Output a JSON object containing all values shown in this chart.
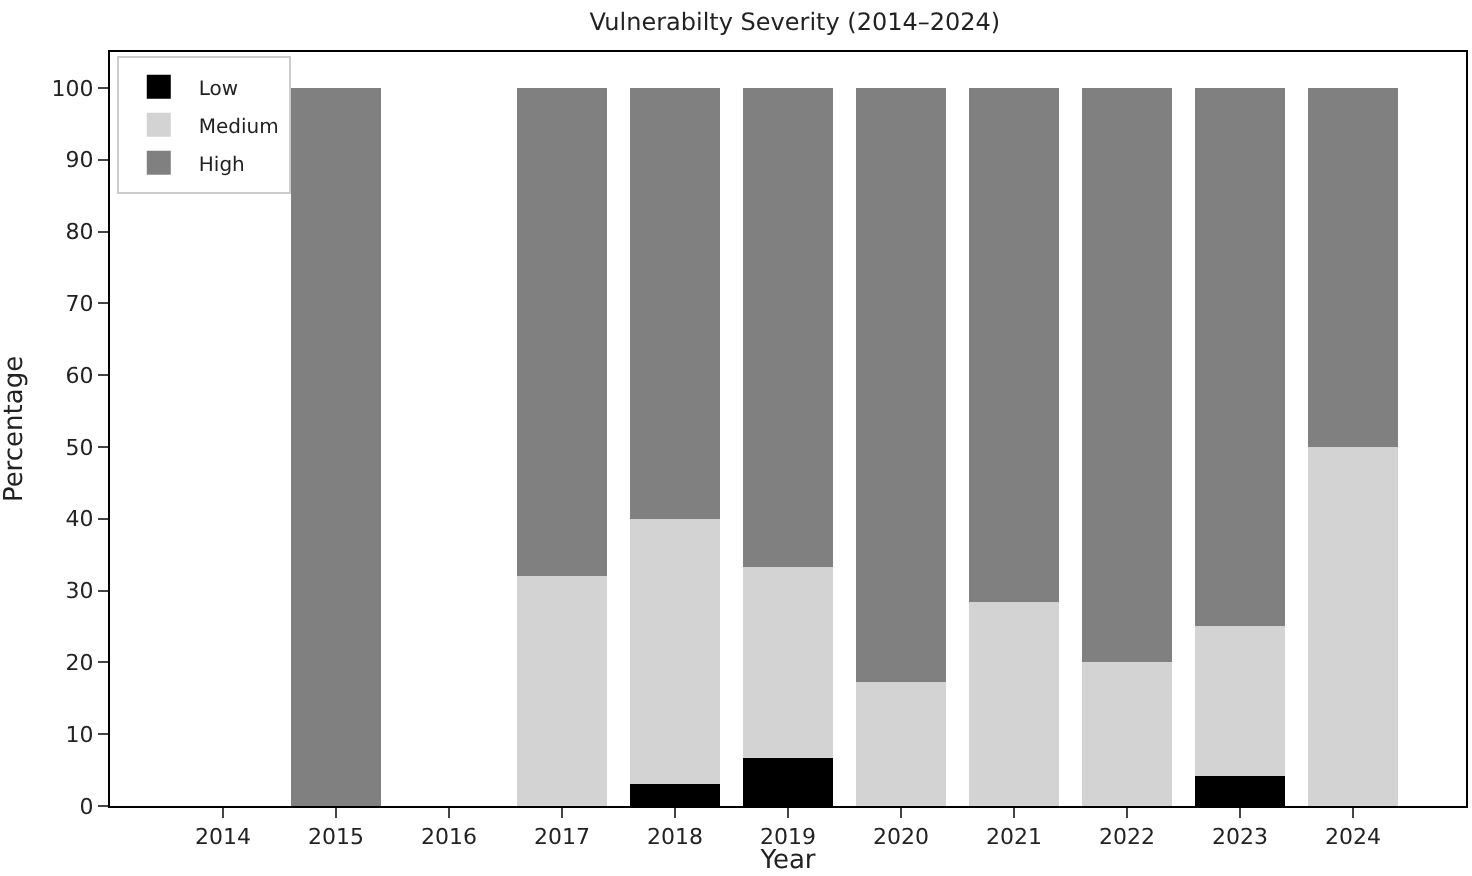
{
  "chart_data": {
    "type": "bar",
    "title": "Vulnerabilty Severity (2014–2024)",
    "xlabel": "Year",
    "ylabel": "Percentage",
    "stacked": true,
    "categories": [
      "2014",
      "2015",
      "2016",
      "2017",
      "2018",
      "2019",
      "2020",
      "2021",
      "2022",
      "2023",
      "2024"
    ],
    "series": [
      {
        "name": "Low",
        "color": "#000000",
        "values": [
          0,
          0,
          0,
          0,
          3,
          6.7,
          0,
          0,
          0,
          4.2,
          0
        ]
      },
      {
        "name": "Medium",
        "color": "#d3d3d3",
        "values": [
          0,
          0,
          0,
          32,
          37,
          26.6,
          17.2,
          28.4,
          20,
          20.8,
          50
        ]
      },
      {
        "name": "High",
        "color": "#808080",
        "values": [
          0,
          100,
          0,
          68,
          60,
          66.7,
          82.8,
          71.6,
          80,
          75,
          50
        ]
      }
    ],
    "ylim": [
      0,
      105
    ],
    "yticks": [
      0,
      10,
      20,
      30,
      40,
      50,
      60,
      70,
      80,
      90,
      100
    ],
    "legend": "top left"
  }
}
